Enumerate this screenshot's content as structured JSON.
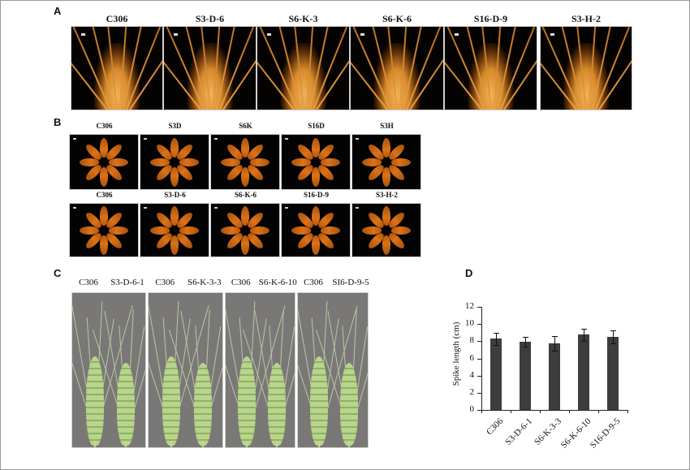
{
  "figure": {
    "panel_A": {
      "label": "A",
      "description": "Mature spike close-up photographs on black background",
      "titles": [
        "C306",
        "S3-D-6",
        "S6-K-3",
        "S6-K-6",
        "S16-D-9",
        "S3-H-2"
      ]
    },
    "panel_B": {
      "label": "B",
      "description": "Grains arranged radially on black background",
      "row1_titles": [
        "C306",
        "S3D",
        "S6K",
        "S16D",
        "S3H"
      ],
      "row2_titles": [
        "C306",
        "S3-D-6",
        "S6-K-6",
        "S16-D-9",
        "S3-H-2"
      ]
    },
    "panel_C": {
      "label": "C",
      "description": "Green spike pairs photographed on gray background",
      "pairs": [
        {
          "left": "C306",
          "right": "S3-D-6-1"
        },
        {
          "left": "C306",
          "right": "S6-K-3-3"
        },
        {
          "left": "C306",
          "right": "S6-K-6-10"
        },
        {
          "left": "C306",
          "right": "SI6-D-9-5"
        }
      ]
    },
    "panel_D": {
      "label": "D"
    }
  },
  "chart_data": {
    "type": "bar",
    "title": "",
    "categories": [
      "C306",
      "S3-D-6-1",
      "S6-K-3-3",
      "S6-K-6-10",
      "S16-D-9-5"
    ],
    "values": [
      8.3,
      7.95,
      7.75,
      8.75,
      8.5
    ],
    "error": [
      0.7,
      0.55,
      0.85,
      0.7,
      0.75
    ],
    "xlabel": "",
    "ylabel": "Spike length (cm)",
    "ylim": [
      0,
      12
    ],
    "yticks": [
      0,
      2,
      4,
      6,
      8,
      10,
      12
    ],
    "grid": false,
    "legend": null,
    "bar_color": "#3d3d3d"
  }
}
